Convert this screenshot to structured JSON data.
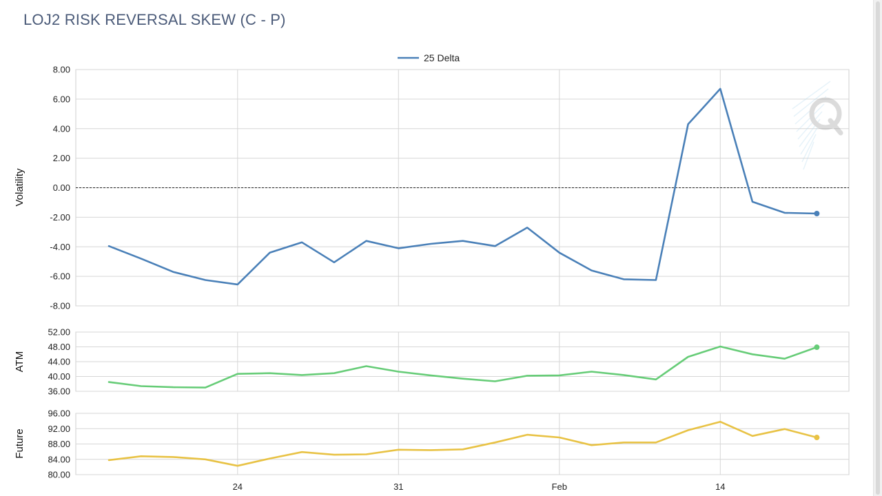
{
  "title": "LOJ2 RISK REVERSAL SKEW (C - P)",
  "chart_data": [
    {
      "type": "line",
      "panel": "main",
      "ylabel": "Volatility",
      "ylim": [
        -8,
        8
      ],
      "yticks": [
        "8.00",
        "6.00",
        "4.00",
        "2.00",
        "0.00",
        "-2.00",
        "-4.00",
        "-6.00",
        "-8.00"
      ],
      "reference_line": 0,
      "legend": "top-center",
      "grid": true,
      "series": [
        {
          "name": "25 Delta",
          "color": "#4a80b8",
          "values": [
            -3.95,
            -4.8,
            -5.7,
            -6.25,
            -6.55,
            -4.4,
            -3.7,
            -5.05,
            -3.6,
            -4.1,
            -3.8,
            -3.6,
            -3.95,
            -2.7,
            -4.4,
            -5.6,
            -6.2,
            -6.25,
            4.3,
            6.7,
            -0.95,
            -1.7,
            -1.75
          ]
        }
      ]
    },
    {
      "type": "line",
      "panel": "atm",
      "ylabel": "ATM",
      "ylim": [
        36,
        52
      ],
      "yticks": [
        "52.00",
        "48.00",
        "44.00",
        "40.00",
        "36.00"
      ],
      "grid": true,
      "series": [
        {
          "color": "#66cc77",
          "values": [
            38.5,
            37.4,
            37.1,
            37.0,
            40.7,
            40.9,
            40.4,
            40.9,
            42.8,
            41.3,
            40.3,
            39.4,
            38.7,
            40.2,
            40.3,
            41.3,
            40.4,
            39.2,
            45.3,
            48.1,
            46.0,
            44.8,
            47.9
          ]
        }
      ]
    },
    {
      "type": "line",
      "panel": "future",
      "ylabel": "Future",
      "ylim": [
        80,
        96
      ],
      "yticks": [
        "96.00",
        "92.00",
        "88.00",
        "84.00",
        "80.00"
      ],
      "xticks": [
        {
          "index": 4,
          "label": "24"
        },
        {
          "index": 9,
          "label": "31"
        },
        {
          "index": 14,
          "label": "Feb"
        },
        {
          "index": 19,
          "label": "14"
        }
      ],
      "grid": true,
      "series": [
        {
          "color": "#e8c244",
          "values": [
            83.8,
            84.8,
            84.6,
            84.0,
            82.3,
            84.2,
            85.9,
            85.2,
            85.3,
            86.5,
            86.4,
            86.6,
            88.4,
            90.4,
            89.7,
            87.7,
            88.4,
            88.4,
            91.6,
            93.8,
            90.1,
            91.9,
            89.7
          ]
        }
      ]
    }
  ]
}
